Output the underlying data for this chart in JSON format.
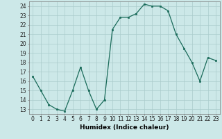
{
  "x": [
    0,
    1,
    2,
    3,
    4,
    5,
    6,
    7,
    8,
    9,
    10,
    11,
    12,
    13,
    14,
    15,
    16,
    17,
    18,
    19,
    20,
    21,
    22,
    23
  ],
  "y": [
    16.5,
    15.0,
    13.5,
    13.0,
    12.8,
    15.0,
    17.5,
    15.0,
    13.0,
    14.0,
    21.5,
    22.8,
    22.8,
    23.2,
    24.2,
    24.0,
    24.0,
    23.5,
    21.0,
    19.5,
    18.0,
    16.0,
    18.5,
    18.2
  ],
  "line_color": "#1a6b5a",
  "marker": "s",
  "marker_size": 2,
  "bg_color": "#cce8e8",
  "grid_color": "#aacccc",
  "xlabel": "Humidex (Indice chaleur)",
  "ylim": [
    12.5,
    24.5
  ],
  "xlim": [
    -0.5,
    23.5
  ],
  "yticks": [
    13,
    14,
    15,
    16,
    17,
    18,
    19,
    20,
    21,
    22,
    23,
    24
  ],
  "xticks": [
    0,
    1,
    2,
    3,
    4,
    5,
    6,
    7,
    8,
    9,
    10,
    11,
    12,
    13,
    14,
    15,
    16,
    17,
    18,
    19,
    20,
    21,
    22,
    23
  ],
  "tick_fontsize": 5.5,
  "label_fontsize": 6.5
}
